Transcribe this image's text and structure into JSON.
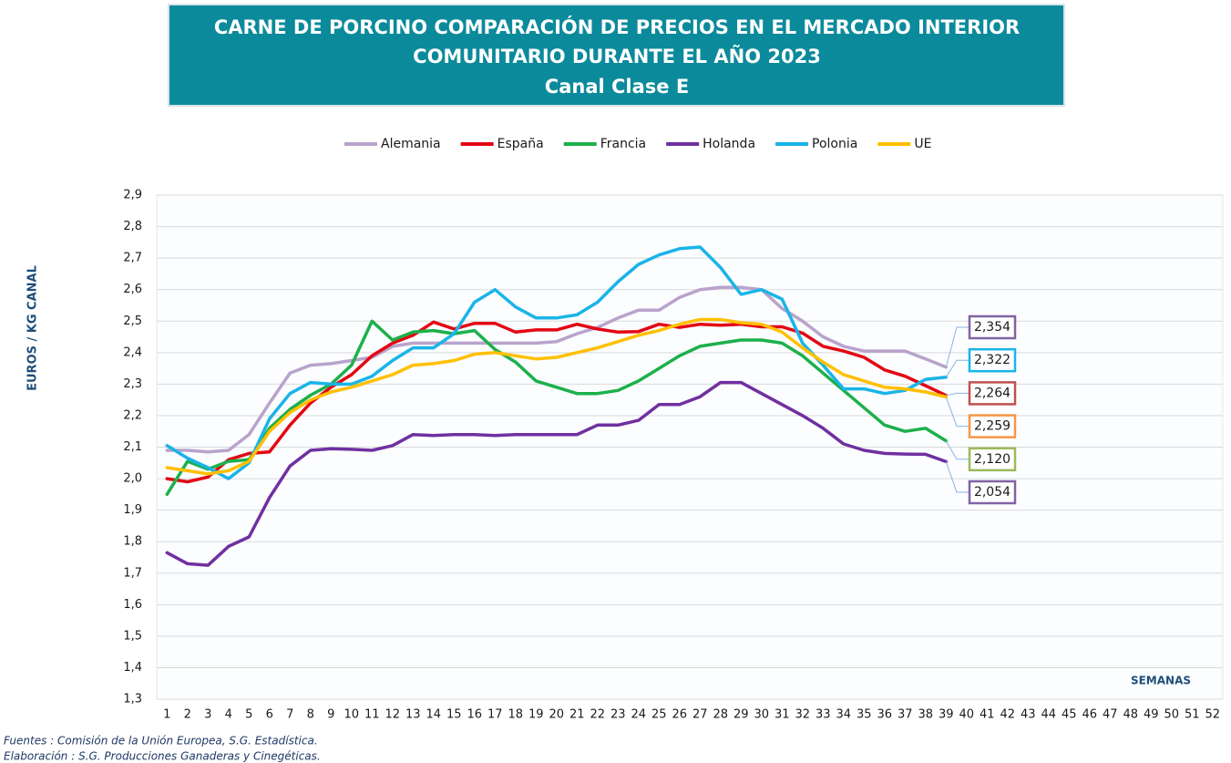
{
  "chart_data": {
    "type": "line",
    "title_lines": [
      "CARNE DE PORCINO COMPARACIÓN DE PRECIOS EN EL MERCADO INTERIOR",
      "COMUNITARIO DURANTE  EL AÑO 2023",
      "Canal Clase E"
    ],
    "y_label": "EUROS / KG CANAL",
    "x_label": "SEMANAS",
    "footnotes": [
      "Fuentes : Comisión de la Unión Europea, S.G. Estadística.",
      "Elaboración : S.G. Producciones Ganaderas y Cinegéticas."
    ],
    "categories": [
      "1",
      "2",
      "3",
      "4",
      "5",
      "6",
      "7",
      "8",
      "9",
      "10",
      "11",
      "12",
      "13",
      "14",
      "15",
      "16",
      "17",
      "18",
      "19",
      "20",
      "21",
      "22",
      "23",
      "24",
      "25",
      "26",
      "27",
      "28",
      "29",
      "30",
      "31",
      "32",
      "33",
      "34",
      "35",
      "36",
      "37",
      "38",
      "39",
      "40",
      "41",
      "42",
      "43",
      "44",
      "45",
      "46",
      "47",
      "48",
      "49",
      "50",
      "51",
      "52"
    ],
    "ylim": [
      1.3,
      2.9
    ],
    "yticks": [
      {
        "value": 1.3,
        "label": "1,3"
      },
      {
        "value": 1.4,
        "label": "1,4"
      },
      {
        "value": 1.5,
        "label": "1,5"
      },
      {
        "value": 1.6,
        "label": "1,6"
      },
      {
        "value": 1.7,
        "label": "1,7"
      },
      {
        "value": 1.8,
        "label": "1,8"
      },
      {
        "value": 1.9,
        "label": "1,9"
      },
      {
        "value": 2.0,
        "label": "2,0"
      },
      {
        "value": 2.1,
        "label": "2,1"
      },
      {
        "value": 2.2,
        "label": "2,2"
      },
      {
        "value": 2.3,
        "label": "2,3"
      },
      {
        "value": 2.4,
        "label": "2,4"
      },
      {
        "value": 2.5,
        "label": "2,5"
      },
      {
        "value": 2.6,
        "label": "2,6"
      },
      {
        "value": 2.7,
        "label": "2,7"
      },
      {
        "value": 2.8,
        "label": "2,8"
      },
      {
        "value": 2.9,
        "label": "2,9"
      }
    ],
    "grid": true,
    "legend": "top",
    "series": [
      {
        "name": "Alemania",
        "color": "#b9a3cc",
        "label_border": "#8064a2",
        "values": [
          2.09,
          2.09,
          2.085,
          2.09,
          2.14,
          2.24,
          2.335,
          2.36,
          2.365,
          2.375,
          2.385,
          2.42,
          2.43,
          2.43,
          2.43,
          2.43,
          2.43,
          2.43,
          2.43,
          2.435,
          2.46,
          2.48,
          2.51,
          2.535,
          2.535,
          2.575,
          2.6,
          2.607,
          2.607,
          2.6,
          2.54,
          2.5,
          2.45,
          2.42,
          2.405,
          2.405,
          2.405,
          2.38,
          2.354,
          null,
          null,
          null,
          null,
          null,
          null,
          null,
          null,
          null,
          null,
          null,
          null,
          null
        ],
        "value_labels": [
          null,
          null,
          null,
          null,
          null,
          null,
          null,
          null,
          null,
          null,
          null,
          null,
          null,
          null,
          null,
          null,
          null,
          null,
          null,
          null,
          null,
          null,
          null,
          null,
          null,
          null,
          null,
          null,
          null,
          null,
          null,
          null,
          null,
          null,
          null,
          null,
          null,
          null,
          "2,354",
          null,
          null,
          null,
          null,
          null,
          null,
          null,
          null,
          null,
          null,
          null,
          null,
          null
        ]
      },
      {
        "name": "España",
        "color": "#e30613",
        "label_border": "#c0504d",
        "values": [
          2.0,
          1.99,
          2.005,
          2.06,
          2.08,
          2.085,
          2.17,
          2.24,
          2.29,
          2.33,
          2.39,
          2.43,
          2.455,
          2.497,
          2.475,
          2.493,
          2.493,
          2.465,
          2.472,
          2.472,
          2.49,
          2.475,
          2.465,
          2.467,
          2.49,
          2.48,
          2.49,
          2.487,
          2.49,
          2.482,
          2.482,
          2.462,
          2.42,
          2.405,
          2.385,
          2.345,
          2.325,
          2.295,
          2.264,
          null,
          null,
          null,
          null,
          null,
          null,
          null,
          null,
          null,
          null,
          null,
          null,
          null
        ],
        "value_labels": [
          null,
          null,
          null,
          null,
          null,
          null,
          null,
          null,
          null,
          null,
          null,
          null,
          null,
          null,
          null,
          null,
          null,
          null,
          null,
          null,
          null,
          null,
          null,
          null,
          null,
          null,
          null,
          null,
          null,
          null,
          null,
          null,
          null,
          null,
          null,
          null,
          null,
          null,
          "2,264",
          null,
          null,
          null,
          null,
          null,
          null,
          null,
          null,
          null,
          null,
          null,
          null,
          null
        ]
      },
      {
        "name": "Francia",
        "color": "#1db04b",
        "label_border": "#9bbb59",
        "values": [
          1.95,
          2.055,
          2.03,
          2.055,
          2.06,
          2.16,
          2.22,
          2.265,
          2.3,
          2.36,
          2.5,
          2.44,
          2.465,
          2.47,
          2.46,
          2.47,
          2.41,
          2.37,
          2.31,
          2.29,
          2.27,
          2.27,
          2.28,
          2.31,
          2.35,
          2.39,
          2.42,
          2.43,
          2.44,
          2.44,
          2.43,
          2.39,
          2.335,
          2.28,
          2.225,
          2.17,
          2.15,
          2.16,
          2.12,
          null,
          null,
          null,
          null,
          null,
          null,
          null,
          null,
          null,
          null,
          null,
          null,
          null
        ],
        "value_labels": [
          null,
          null,
          null,
          null,
          null,
          null,
          null,
          null,
          null,
          null,
          null,
          null,
          null,
          null,
          null,
          null,
          null,
          null,
          null,
          null,
          null,
          null,
          null,
          null,
          null,
          null,
          null,
          null,
          null,
          null,
          null,
          null,
          null,
          null,
          null,
          null,
          null,
          null,
          "2,120",
          null,
          null,
          null,
          null,
          null,
          null,
          null,
          null,
          null,
          null,
          null,
          null,
          null
        ]
      },
      {
        "name": "Holanda",
        "color": "#7030a0",
        "label_border": "#8064a2",
        "values": [
          1.765,
          1.73,
          1.725,
          1.785,
          1.815,
          1.94,
          2.04,
          2.09,
          2.095,
          2.093,
          2.09,
          2.105,
          2.14,
          2.137,
          2.14,
          2.14,
          2.137,
          2.14,
          2.14,
          2.14,
          2.14,
          2.17,
          2.17,
          2.185,
          2.235,
          2.235,
          2.26,
          2.305,
          2.305,
          2.27,
          2.235,
          2.2,
          2.16,
          2.11,
          2.09,
          2.08,
          2.078,
          2.077,
          2.054,
          null,
          null,
          null,
          null,
          null,
          null,
          null,
          null,
          null,
          null,
          null,
          null,
          null
        ],
        "value_labels": [
          null,
          null,
          null,
          null,
          null,
          null,
          null,
          null,
          null,
          null,
          null,
          null,
          null,
          null,
          null,
          null,
          null,
          null,
          null,
          null,
          null,
          null,
          null,
          null,
          null,
          null,
          null,
          null,
          null,
          null,
          null,
          null,
          null,
          null,
          null,
          null,
          null,
          null,
          "2,054",
          null,
          null,
          null,
          null,
          null,
          null,
          null,
          null,
          null,
          null,
          null,
          null,
          null
        ]
      },
      {
        "name": "Polonia",
        "color": "#1ab4e8",
        "label_border": "#1ab4e8",
        "values": [
          2.105,
          2.065,
          2.035,
          2.0,
          2.05,
          2.19,
          2.27,
          2.305,
          2.3,
          2.3,
          2.325,
          2.375,
          2.415,
          2.415,
          2.46,
          2.56,
          2.6,
          2.545,
          2.51,
          2.51,
          2.52,
          2.56,
          2.625,
          2.68,
          2.71,
          2.73,
          2.735,
          2.67,
          2.585,
          2.6,
          2.57,
          2.43,
          2.36,
          2.285,
          2.285,
          2.27,
          2.28,
          2.315,
          2.322,
          null,
          null,
          null,
          null,
          null,
          null,
          null,
          null,
          null,
          null,
          null,
          null,
          null
        ],
        "value_labels": [
          null,
          null,
          null,
          null,
          null,
          null,
          null,
          null,
          null,
          null,
          null,
          null,
          null,
          null,
          null,
          null,
          null,
          null,
          null,
          null,
          null,
          null,
          null,
          null,
          null,
          null,
          null,
          null,
          null,
          null,
          null,
          null,
          null,
          null,
          null,
          null,
          null,
          null,
          "2,322",
          null,
          null,
          null,
          null,
          null,
          null,
          null,
          null,
          null,
          null,
          null,
          null,
          null
        ]
      },
      {
        "name": "UE",
        "color": "#ffc000",
        "label_border": "#f79646",
        "values": [
          2.035,
          2.025,
          2.015,
          2.025,
          2.055,
          2.15,
          2.21,
          2.25,
          2.275,
          2.29,
          2.31,
          2.33,
          2.36,
          2.365,
          2.375,
          2.395,
          2.4,
          2.39,
          2.38,
          2.385,
          2.4,
          2.415,
          2.435,
          2.455,
          2.47,
          2.49,
          2.505,
          2.505,
          2.495,
          2.49,
          2.465,
          2.415,
          2.37,
          2.33,
          2.31,
          2.29,
          2.285,
          2.275,
          2.259,
          null,
          null,
          null,
          null,
          null,
          null,
          null,
          null,
          null,
          null,
          null,
          null,
          null
        ],
        "value_labels": [
          null,
          null,
          null,
          null,
          null,
          null,
          null,
          null,
          null,
          null,
          null,
          null,
          null,
          null,
          null,
          null,
          null,
          null,
          null,
          null,
          null,
          null,
          null,
          null,
          null,
          null,
          null,
          null,
          null,
          null,
          null,
          null,
          null,
          null,
          null,
          null,
          null,
          null,
          "2,259",
          null,
          null,
          null,
          null,
          null,
          null,
          null,
          null,
          null,
          null,
          null,
          null,
          null
        ]
      }
    ]
  }
}
